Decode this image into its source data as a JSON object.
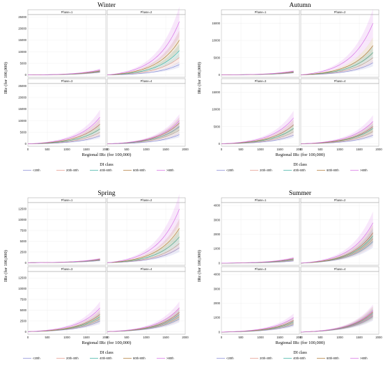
{
  "figure": {
    "xlabel": "Regional IRc (for 100,000)",
    "ylabel": "IRc (for 100,000)",
    "legend_title": "DI class"
  },
  "series_colors": [
    "#8a8fd6",
    "#e59b8f",
    "#3fb2a4",
    "#b07c3a",
    "#d873e6"
  ],
  "chart_data": [
    {
      "type": "line",
      "title": "Winter",
      "xlabel": "Regional IRc (for 100,000)",
      "ylabel": "IRc (for 100,000)",
      "xlim": [
        0,
        2000
      ],
      "ylim": [
        -1000,
        26000
      ],
      "yticks": [
        0,
        5000,
        10000,
        15000,
        20000,
        25000
      ],
      "xticks": [
        0,
        500,
        1000,
        1500,
        2000
      ],
      "x_max": 1850,
      "legend": [
        "<20th",
        "20th-40th",
        "40th-60th",
        "60th-80th",
        ">80th"
      ],
      "panels": [
        {
          "label": "Phase=1",
          "end_values": [
            1200,
            1400,
            1600,
            1800,
            2200
          ]
        },
        {
          "label": "Phase=2",
          "end_values": [
            4500,
            7500,
            10500,
            15000,
            23000
          ]
        },
        {
          "label": "Phase=3",
          "end_values": [
            3500,
            5000,
            6500,
            8500,
            11500
          ]
        },
        {
          "label": "Phase=4",
          "end_values": [
            4000,
            6000,
            7500,
            9000,
            10000
          ]
        }
      ]
    },
    {
      "type": "line",
      "title": "Autumn",
      "xlabel": "Regional IRc (for 100,000)",
      "ylabel": "IRc (for 100,000)",
      "xlim": [
        0,
        2000
      ],
      "ylim": [
        -700,
        17500
      ],
      "yticks": [
        0,
        5000,
        10000,
        15000
      ],
      "xticks": [
        0,
        500,
        1000,
        1500,
        2000
      ],
      "x_max": 1850,
      "legend": [
        "<20th",
        "20th-40th",
        "40th-60th",
        "60th-80th",
        ">80th"
      ],
      "panels": [
        {
          "label": "Phase=1",
          "end_values": [
            600,
            700,
            800,
            900,
            1100
          ]
        },
        {
          "label": "Phase=2",
          "end_values": [
            3500,
            5000,
            6500,
            8500,
            15000
          ]
        },
        {
          "label": "Phase=3",
          "end_values": [
            2500,
            3500,
            4500,
            5500,
            7500
          ]
        },
        {
          "label": "Phase=4",
          "end_values": [
            2500,
            3500,
            4500,
            5000,
            6500
          ]
        }
      ]
    },
    {
      "type": "line",
      "title": "Spring",
      "xlabel": "Regional IRc (for 100,000)",
      "ylabel": "IRc (for 100,000)",
      "xlim": [
        0,
        2000
      ],
      "ylim": [
        -600,
        14000
      ],
      "yticks": [
        0,
        2500,
        5000,
        7500,
        10000,
        12500
      ],
      "xticks": [
        0,
        500,
        1000,
        1500,
        2000
      ],
      "x_max": 1850,
      "legend": [
        "<20th",
        "20th-40th",
        "40th-60th",
        "60th-80th",
        ">80th"
      ],
      "panels": [
        {
          "label": "Phase=1",
          "end_values": [
            500,
            600,
            700,
            800,
            900
          ]
        },
        {
          "label": "Phase=2",
          "end_values": [
            3500,
            4500,
            6000,
            8000,
            12500
          ]
        },
        {
          "label": "Phase=3",
          "end_values": [
            2500,
            3000,
            3500,
            4000,
            5500
          ]
        },
        {
          "label": "Phase=4",
          "end_values": [
            3000,
            3500,
            4000,
            4500,
            5500
          ]
        }
      ]
    },
    {
      "type": "line",
      "title": "Summer",
      "xlabel": "Regional IRc (for 100,000)",
      "ylabel": "IRc (for 100,000)",
      "xlim": [
        0,
        2000
      ],
      "ylim": [
        -150,
        4200
      ],
      "yticks": [
        0,
        1000,
        2000,
        3000,
        4000
      ],
      "xticks": [
        0,
        500,
        1000,
        1500,
        2000
      ],
      "x_max": 1850,
      "legend": [
        "<20th",
        "20th-40th",
        "40th-60th",
        "60th-80th",
        ">80th"
      ],
      "panels": [
        {
          "label": "Phase=1",
          "end_values": [
            150,
            200,
            250,
            300,
            350
          ]
        },
        {
          "label": "Phase=2",
          "end_values": [
            1500,
            1700,
            1900,
            2100,
            2800
          ]
        },
        {
          "label": "Phase=3",
          "end_values": [
            500,
            600,
            700,
            800,
            1000
          ]
        },
        {
          "label": "Phase=4",
          "end_values": [
            1100,
            1200,
            1300,
            1400,
            1500
          ]
        }
      ]
    }
  ]
}
